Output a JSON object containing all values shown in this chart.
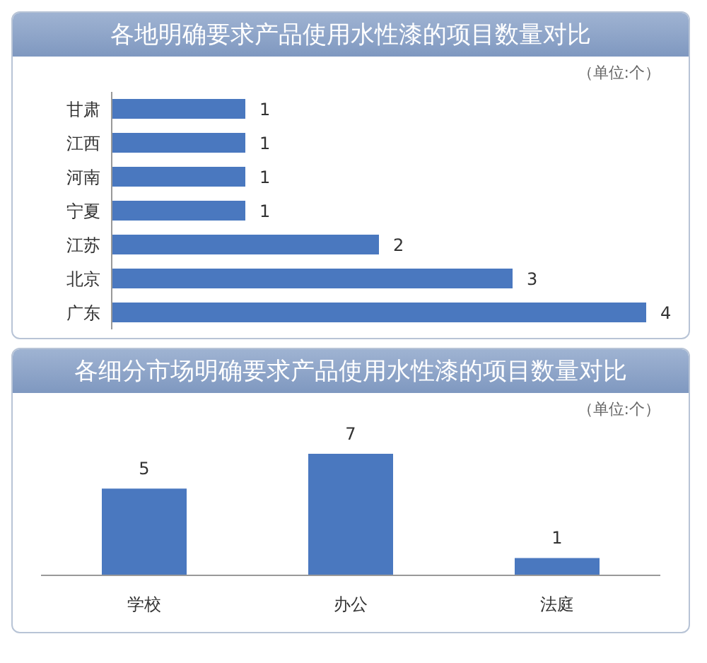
{
  "chart_data": [
    {
      "type": "bar",
      "orientation": "horizontal",
      "title": "各地明确要求产品使用水性漆的项目数量对比",
      "annotations": [
        "（单位:个）"
      ],
      "categories": [
        "甘肃",
        "江西",
        "河南",
        "宁夏",
        "江苏",
        "北京",
        "广东"
      ],
      "values": [
        1,
        1,
        1,
        1,
        2,
        3,
        4
      ],
      "color": "#4a78bf",
      "data_labels": true,
      "grid": false,
      "legend": false,
      "tick_labels": "y"
    },
    {
      "type": "bar",
      "title": "各细分市场明确要求产品使用水性漆的项目数量对比",
      "annotations": [
        "（单位:个）"
      ],
      "categories": [
        "学校",
        "办公",
        "法庭"
      ],
      "values": [
        5,
        7,
        1
      ],
      "color": "#4a78bf",
      "data_labels": true,
      "grid": false,
      "legend": false,
      "tick_labels": "x"
    }
  ]
}
